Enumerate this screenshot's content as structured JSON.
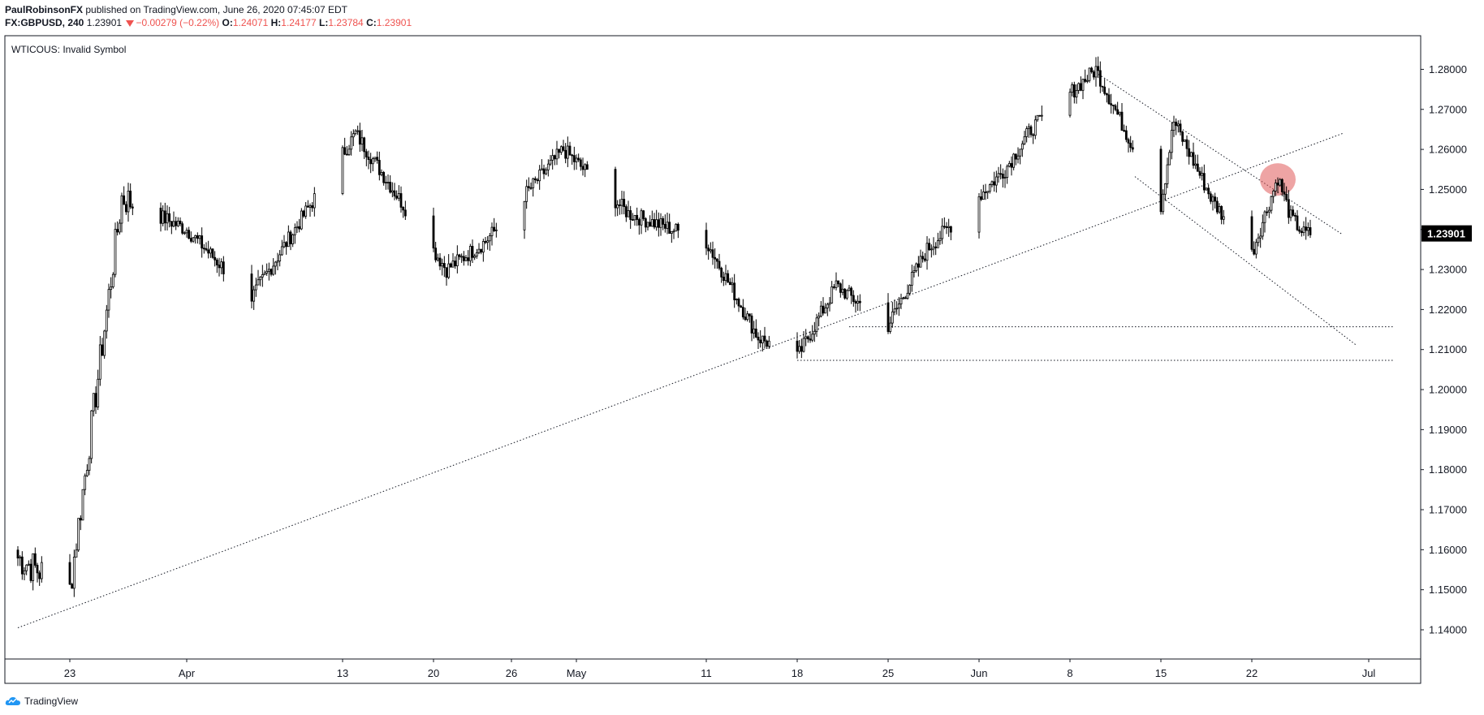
{
  "header": {
    "author": "PaulRobinsonFX",
    "published": "published on TradingView.com, June 26, 2020 07:45:07 EDT",
    "symbol": "FX:GBPUSD, 240",
    "last": "1.23901",
    "change": "−0.00279 (−0.22%)",
    "o_label": "O:",
    "o_value": "1.24071",
    "h_label": "H:",
    "h_value": "1.24177",
    "l_label": "L:",
    "l_value": "1.23784",
    "c_label": "C:",
    "c_value": "1.23901"
  },
  "overlay_text": "WTICOUS: Invalid Symbol",
  "footer": {
    "brand": "TradingView"
  },
  "colors": {
    "candle_up": "#ffffff",
    "candle_down": "#000000",
    "wick": "#000000",
    "price_tag_bg": "#000000",
    "price_tag_text": "#ffffff",
    "highlight": "#e05a5a"
  },
  "chart_data": {
    "type": "candlestick",
    "title": "",
    "xlabel": "",
    "ylabel": "",
    "ylim": [
      1.1327,
      1.2884
    ],
    "y_ticks": [
      "1.28000",
      "1.27000",
      "1.26000",
      "1.25000",
      "1.24000",
      "1.23000",
      "1.22000",
      "1.21000",
      "1.20000",
      "1.19000",
      "1.18000",
      "1.17000",
      "1.16000",
      "1.15000",
      "1.14000"
    ],
    "x_ticks": [
      "23",
      "Apr",
      "13",
      "20",
      "26",
      "May",
      "11",
      "18",
      "25",
      "Jun",
      "8",
      "15",
      "22",
      "Jul"
    ],
    "last_price": "1.23901",
    "series": [
      {
        "x": [
          "2020-03-19",
          "2020-03-23",
          "2020-03-27",
          "2020-04-01",
          "2020-04-06",
          "2020-04-14",
          "2020-04-21",
          "2020-04-24",
          "2020-04-30",
          "2020-05-05",
          "2020-05-11",
          "2020-05-15",
          "2020-05-18",
          "2020-05-21",
          "2020-05-25",
          "2020-05-28",
          "2020-06-03",
          "2020-06-05",
          "2020-06-10",
          "2020-06-15",
          "2020-06-16",
          "2020-06-19",
          "2020-06-22",
          "2020-06-24",
          "2020-06-25",
          "2020-06-26"
        ],
        "close": [
          1.158,
          1.15,
          1.248,
          1.24,
          1.223,
          1.264,
          1.23,
          1.237,
          1.26,
          1.244,
          1.237,
          1.213,
          1.208,
          1.226,
          1.216,
          1.235,
          1.255,
          1.265,
          1.28,
          1.246,
          1.267,
          1.247,
          1.234,
          1.253,
          1.243,
          1.239
        ]
      }
    ],
    "annotations": {
      "long_trendline": [
        [
          "2020-03-19",
          1.1405
        ],
        [
          "2020-06-29",
          1.264
        ]
      ],
      "channel_upper": [
        [
          "2020-06-10",
          1.2792
        ],
        [
          "2020-06-29",
          1.2387
        ]
      ],
      "channel_lower": [
        [
          "2020-06-13",
          1.2532
        ],
        [
          "2020-06-30",
          1.2112
        ]
      ],
      "support_1": 1.2157,
      "support_2": 1.2073,
      "highlight_circle": [
        "2020-06-24",
        1.2525
      ]
    }
  }
}
